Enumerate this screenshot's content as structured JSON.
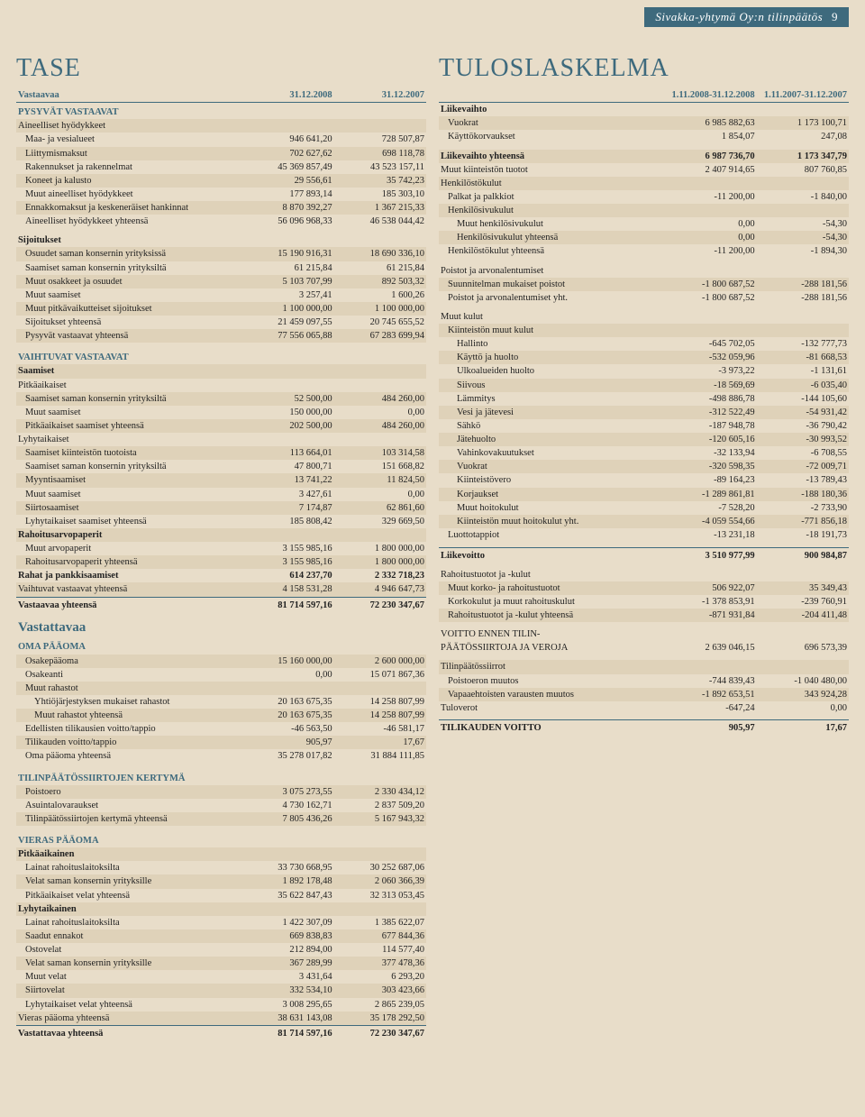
{
  "header": {
    "title": "Sivakka-yhtymä Oy:n tilinpäätös",
    "page_num": "9"
  },
  "left": {
    "title": "TASE",
    "col_headers": [
      "Vastaavaa",
      "31.12.2008",
      "31.12.2007"
    ],
    "sections": [
      {
        "type": "head",
        "label": "PYSYVÄT VASTAAVAT"
      },
      {
        "type": "row",
        "label": "Aineelliset hyödykkeet",
        "v": [
          "",
          ""
        ],
        "shade": true
      },
      {
        "type": "row",
        "label": "Maa- ja vesialueet",
        "v": [
          "946 641,20",
          "728 507,87"
        ],
        "indent": 1
      },
      {
        "type": "row",
        "label": "Liittymismaksut",
        "v": [
          "702 627,62",
          "698 118,78"
        ],
        "indent": 1,
        "shade": true
      },
      {
        "type": "row",
        "label": "Rakennukset ja rakennelmat",
        "v": [
          "45 369 857,49",
          "43 523 157,11"
        ],
        "indent": 1
      },
      {
        "type": "row",
        "label": "Koneet ja kalusto",
        "v": [
          "29 556,61",
          "35 742,23"
        ],
        "indent": 1,
        "shade": true
      },
      {
        "type": "row",
        "label": "Muut aineelliset hyödykkeet",
        "v": [
          "177 893,14",
          "185 303,10"
        ],
        "indent": 1
      },
      {
        "type": "row",
        "label": "Ennakkomaksut ja keskeneräiset hankinnat",
        "v": [
          "8 870 392,27",
          "1 367 215,33"
        ],
        "indent": 1,
        "shade": true
      },
      {
        "type": "row",
        "label": "Aineelliset hyödykkeet yhteensä",
        "v": [
          "56 096 968,33",
          "46 538 044,42"
        ],
        "indent": 1
      },
      {
        "type": "spacer"
      },
      {
        "type": "row",
        "label": "Sijoitukset",
        "v": [
          "",
          ""
        ],
        "bold": true
      },
      {
        "type": "row",
        "label": "Osuudet saman konsernin yrityksissä",
        "v": [
          "15 190 916,31",
          "18 690 336,10"
        ],
        "indent": 1,
        "shade": true
      },
      {
        "type": "row",
        "label": "Saamiset saman konsernin yrityksiltä",
        "v": [
          "61 215,84",
          "61 215,84"
        ],
        "indent": 1
      },
      {
        "type": "row",
        "label": "Muut osakkeet ja osuudet",
        "v": [
          "5 103 707,99",
          "892 503,32"
        ],
        "indent": 1,
        "shade": true
      },
      {
        "type": "row",
        "label": "Muut saamiset",
        "v": [
          "3 257,41",
          "1 600,26"
        ],
        "indent": 1
      },
      {
        "type": "row",
        "label": "Muut pitkävaikutteiset sijoitukset",
        "v": [
          "1 100 000,00",
          "1 100 000,00"
        ],
        "indent": 1,
        "shade": true
      },
      {
        "type": "row",
        "label": "Sijoitukset yhteensä",
        "v": [
          "21 459 097,55",
          "20 745 655,52"
        ],
        "indent": 1
      },
      {
        "type": "row",
        "label": "Pysyvät vastaavat yhteensä",
        "v": [
          "77 556 065,88",
          "67 283 699,94"
        ],
        "indent": 1,
        "shade": true
      },
      {
        "type": "spacer"
      },
      {
        "type": "head",
        "label": "VAIHTUVAT VASTAAVAT"
      },
      {
        "type": "row",
        "label": "Saamiset",
        "v": [
          "",
          ""
        ],
        "bold": true,
        "shade": true
      },
      {
        "type": "row",
        "label": "Pitkäaikaiset",
        "v": [
          "",
          ""
        ]
      },
      {
        "type": "row",
        "label": "Saamiset saman konsernin yrityksiltä",
        "v": [
          "52 500,00",
          "484 260,00"
        ],
        "indent": 1,
        "shade": true
      },
      {
        "type": "row",
        "label": "Muut saamiset",
        "v": [
          "150 000,00",
          "0,00"
        ],
        "indent": 1
      },
      {
        "type": "row",
        "label": "Pitkäaikaiset saamiset yhteensä",
        "v": [
          "202 500,00",
          "484 260,00"
        ],
        "indent": 1,
        "shade": true
      },
      {
        "type": "row",
        "label": "Lyhytaikaiset",
        "v": [
          "",
          ""
        ]
      },
      {
        "type": "row",
        "label": "Saamiset kiinteistön tuotoista",
        "v": [
          "113 664,01",
          "103 314,58"
        ],
        "indent": 1,
        "shade": true
      },
      {
        "type": "row",
        "label": "Saamiset saman konsernin yrityksiltä",
        "v": [
          "47 800,71",
          "151 668,82"
        ],
        "indent": 1
      },
      {
        "type": "row",
        "label": "Myyntisaamiset",
        "v": [
          "13 741,22",
          "11 824,50"
        ],
        "indent": 1,
        "shade": true
      },
      {
        "type": "row",
        "label": "Muut saamiset",
        "v": [
          "3 427,61",
          "0,00"
        ],
        "indent": 1
      },
      {
        "type": "row",
        "label": "Siirtosaamiset",
        "v": [
          "7 174,87",
          "62 861,60"
        ],
        "indent": 1,
        "shade": true
      },
      {
        "type": "row",
        "label": "Lyhytaikaiset saamiset yhteensä",
        "v": [
          "185 808,42",
          "329 669,50"
        ],
        "indent": 1
      },
      {
        "type": "row",
        "label": "Rahoitusarvopaperit",
        "v": [
          "",
          ""
        ],
        "bold": true,
        "shade": true
      },
      {
        "type": "row",
        "label": "Muut arvopaperit",
        "v": [
          "3 155 985,16",
          "1 800 000,00"
        ],
        "indent": 1
      },
      {
        "type": "row",
        "label": "Rahoitusarvopaperit yhteensä",
        "v": [
          "3 155 985,16",
          "1 800 000,00"
        ],
        "indent": 1,
        "shade": true
      },
      {
        "type": "row",
        "label": "Rahat ja pankkisaamiset",
        "v": [
          "614 237,70",
          "2 332 718,23"
        ],
        "bold": true
      },
      {
        "type": "row",
        "label": "Vaihtuvat vastaavat yhteensä",
        "v": [
          "4 158 531,28",
          "4 946 647,73"
        ],
        "shade": true
      },
      {
        "type": "divider",
        "label": "Vastaavaa yhteensä",
        "v": [
          "81 714 597,16",
          "72 230 347,67"
        ]
      },
      {
        "type": "subtitle",
        "label": "Vastattavaa"
      },
      {
        "type": "head",
        "label": "OMA PÄÄOMA"
      },
      {
        "type": "row",
        "label": "Osakepääoma",
        "v": [
          "15 160 000,00",
          "2 600 000,00"
        ],
        "indent": 1,
        "shade": true
      },
      {
        "type": "row",
        "label": "Osakeanti",
        "v": [
          "0,00",
          "15 071 867,36"
        ],
        "indent": 1
      },
      {
        "type": "row",
        "label": "Muut rahastot",
        "v": [
          "",
          ""
        ],
        "indent": 1,
        "shade": true
      },
      {
        "type": "row",
        "label": "Yhtiöjärjestyksen mukaiset rahastot",
        "v": [
          "20 163 675,35",
          "14 258 807,99"
        ],
        "indent": 2
      },
      {
        "type": "row",
        "label": "Muut rahastot yhteensä",
        "v": [
          "20 163 675,35",
          "14 258 807,99"
        ],
        "indent": 2,
        "shade": true
      },
      {
        "type": "row",
        "label": "Edellisten tilikausien voitto/tappio",
        "v": [
          "-46 563,50",
          "-46 581,17"
        ],
        "indent": 1
      },
      {
        "type": "row",
        "label": "Tilikauden voitto/tappio",
        "v": [
          "905,97",
          "17,67"
        ],
        "indent": 1,
        "shade": true
      },
      {
        "type": "row",
        "label": "Oma pääoma yhteensä",
        "v": [
          "35 278 017,82",
          "31 884 111,85"
        ],
        "indent": 1
      },
      {
        "type": "spacer"
      },
      {
        "type": "head",
        "label": "TILINPÄÄTÖSSIIRTOJEN KERTYMÄ"
      },
      {
        "type": "row",
        "label": "Poistoero",
        "v": [
          "3 075 273,55",
          "2 330 434,12"
        ],
        "indent": 1,
        "shade": true
      },
      {
        "type": "row",
        "label": "Asuintalovaraukset",
        "v": [
          "4 730 162,71",
          "2 837 509,20"
        ],
        "indent": 1
      },
      {
        "type": "row",
        "label": "Tilinpäätössiirtojen kertymä yhteensä",
        "v": [
          "7 805 436,26",
          "5 167 943,32"
        ],
        "indent": 1,
        "shade": true
      },
      {
        "type": "spacer"
      },
      {
        "type": "head",
        "label": "VIERAS PÄÄOMA"
      },
      {
        "type": "row",
        "label": "Pitkäaikainen",
        "v": [
          "",
          ""
        ],
        "bold": true,
        "shade": true
      },
      {
        "type": "row",
        "label": "Lainat rahoituslaitoksilta",
        "v": [
          "33 730 668,95",
          "30 252 687,06"
        ],
        "indent": 1
      },
      {
        "type": "row",
        "label": "Velat saman konsernin yrityksille",
        "v": [
          "1 892 178,48",
          "2 060 366,39"
        ],
        "indent": 1,
        "shade": true
      },
      {
        "type": "row",
        "label": "Pitkäaikaiset velat yhteensä",
        "v": [
          "35 622 847,43",
          "32 313 053,45"
        ],
        "indent": 1
      },
      {
        "type": "row",
        "label": "Lyhytaikainen",
        "v": [
          "",
          ""
        ],
        "bold": true,
        "shade": true
      },
      {
        "type": "row",
        "label": "Lainat rahoituslaitoksilta",
        "v": [
          "1 422 307,09",
          "1 385 622,07"
        ],
        "indent": 1
      },
      {
        "type": "row",
        "label": "Saadut ennakot",
        "v": [
          "669 838,83",
          "677 844,36"
        ],
        "indent": 1,
        "shade": true
      },
      {
        "type": "row",
        "label": "Ostovelat",
        "v": [
          "212 894,00",
          "114 577,40"
        ],
        "indent": 1
      },
      {
        "type": "row",
        "label": "Velat saman konsernin yrityksille",
        "v": [
          "367 289,99",
          "377 478,36"
        ],
        "indent": 1,
        "shade": true
      },
      {
        "type": "row",
        "label": "Muut velat",
        "v": [
          "3 431,64",
          "6 293,20"
        ],
        "indent": 1
      },
      {
        "type": "row",
        "label": "Siirtovelat",
        "v": [
          "332 534,10",
          "303 423,66"
        ],
        "indent": 1,
        "shade": true
      },
      {
        "type": "row",
        "label": "Lyhytaikaiset velat yhteensä",
        "v": [
          "3 008 295,65",
          "2 865 239,05"
        ],
        "indent": 1
      },
      {
        "type": "row",
        "label": "Vieras pääoma yhteensä",
        "v": [
          "38 631 143,08",
          "35 178 292,50"
        ],
        "shade": true
      },
      {
        "type": "divider",
        "label": "Vastattavaa yhteensä",
        "v": [
          "81 714 597,16",
          "72 230 347,67"
        ]
      }
    ]
  },
  "right": {
    "title": "TULOSLASKELMA",
    "col_headers": [
      "",
      "1.11.2008-31.12.2008",
      "1.11.2007-31.12.2007"
    ],
    "sections": [
      {
        "type": "row",
        "label": "Liikevaihto",
        "v": [
          "",
          ""
        ],
        "bold": true
      },
      {
        "type": "row",
        "label": "Vuokrat",
        "v": [
          "6 985 882,63",
          "1 173 100,71"
        ],
        "indent": 1,
        "shade": true
      },
      {
        "type": "row",
        "label": "Käyttökorvaukset",
        "v": [
          "1 854,07",
          "247,08"
        ],
        "indent": 1
      },
      {
        "type": "spacer"
      },
      {
        "type": "row",
        "label": "Liikevaihto yhteensä",
        "v": [
          "6 987 736,70",
          "1 173 347,79"
        ],
        "bold": true,
        "shade": true
      },
      {
        "type": "row",
        "label": "Muut kiinteistön tuotot",
        "v": [
          "2 407 914,65",
          "807 760,85"
        ]
      },
      {
        "type": "row",
        "label": "Henkilöstökulut",
        "v": [
          "",
          ""
        ],
        "shade": true
      },
      {
        "type": "row",
        "label": "Palkat ja palkkiot",
        "v": [
          "-11 200,00",
          "-1 840,00"
        ],
        "indent": 1
      },
      {
        "type": "row",
        "label": "Henkilösivukulut",
        "v": [
          "",
          ""
        ],
        "indent": 1,
        "shade": true
      },
      {
        "type": "row",
        "label": "Muut henkilösivukulut",
        "v": [
          "0,00",
          "-54,30"
        ],
        "indent": 2
      },
      {
        "type": "row",
        "label": "Henkilösivukulut yhteensä",
        "v": [
          "0,00",
          "-54,30"
        ],
        "indent": 2,
        "shade": true
      },
      {
        "type": "row",
        "label": "Henkilöstökulut yhteensä",
        "v": [
          "-11 200,00",
          "-1 894,30"
        ],
        "indent": 1
      },
      {
        "type": "spacer"
      },
      {
        "type": "row",
        "label": "Poistot ja arvonalentumiset",
        "v": [
          "",
          ""
        ]
      },
      {
        "type": "row",
        "label": "Suunnitelman mukaiset poistot",
        "v": [
          "-1 800 687,52",
          "-288 181,56"
        ],
        "indent": 1,
        "shade": true
      },
      {
        "type": "row",
        "label": "Poistot ja arvonalentumiset yht.",
        "v": [
          "-1 800 687,52",
          "-288 181,56"
        ],
        "indent": 1
      },
      {
        "type": "spacer"
      },
      {
        "type": "row",
        "label": "Muut kulut",
        "v": [
          "",
          ""
        ]
      },
      {
        "type": "row",
        "label": "Kiinteistön muut kulut",
        "v": [
          "",
          ""
        ],
        "indent": 1,
        "shade": true
      },
      {
        "type": "row",
        "label": "Hallinto",
        "v": [
          "-645 702,05",
          "-132 777,73"
        ],
        "indent": 2
      },
      {
        "type": "row",
        "label": "Käyttö ja huolto",
        "v": [
          "-532 059,96",
          "-81 668,53"
        ],
        "indent": 2,
        "shade": true
      },
      {
        "type": "row",
        "label": "Ulkoalueiden huolto",
        "v": [
          "-3 973,22",
          "-1 131,61"
        ],
        "indent": 2
      },
      {
        "type": "row",
        "label": "Siivous",
        "v": [
          "-18 569,69",
          "-6 035,40"
        ],
        "indent": 2,
        "shade": true
      },
      {
        "type": "row",
        "label": "Lämmitys",
        "v": [
          "-498 886,78",
          "-144 105,60"
        ],
        "indent": 2
      },
      {
        "type": "row",
        "label": "Vesi ja jätevesi",
        "v": [
          "-312 522,49",
          "-54 931,42"
        ],
        "indent": 2,
        "shade": true
      },
      {
        "type": "row",
        "label": "Sähkö",
        "v": [
          "-187 948,78",
          "-36 790,42"
        ],
        "indent": 2
      },
      {
        "type": "row",
        "label": "Jätehuolto",
        "v": [
          "-120 605,16",
          "-30 993,52"
        ],
        "indent": 2,
        "shade": true
      },
      {
        "type": "row",
        "label": "Vahinkovakuutukset",
        "v": [
          "-32 133,94",
          "-6 708,55"
        ],
        "indent": 2
      },
      {
        "type": "row",
        "label": "Vuokrat",
        "v": [
          "-320 598,35",
          "-72 009,71"
        ],
        "indent": 2,
        "shade": true
      },
      {
        "type": "row",
        "label": "Kiinteistövero",
        "v": [
          "-89 164,23",
          "-13 789,43"
        ],
        "indent": 2
      },
      {
        "type": "row",
        "label": "Korjaukset",
        "v": [
          "-1 289 861,81",
          "-188 180,36"
        ],
        "indent": 2,
        "shade": true
      },
      {
        "type": "row",
        "label": "Muut hoitokulut",
        "v": [
          "-7 528,20",
          "-2 733,90"
        ],
        "indent": 2
      },
      {
        "type": "row",
        "label": "Kiinteistön muut hoitokulut yht.",
        "v": [
          "-4 059 554,66",
          "-771 856,18"
        ],
        "indent": 2,
        "shade": true
      },
      {
        "type": "row",
        "label": "Luottotappiot",
        "v": [
          "-13 231,18",
          "-18 191,73"
        ],
        "indent": 1
      },
      {
        "type": "spacer"
      },
      {
        "type": "divider",
        "label": "Liikevoitto",
        "v": [
          "3 510 977,99",
          "900 984,87"
        ]
      },
      {
        "type": "spacer"
      },
      {
        "type": "row",
        "label": "Rahoitustuotot ja -kulut",
        "v": [
          "",
          ""
        ]
      },
      {
        "type": "row",
        "label": "Muut korko- ja rahoitustuotot",
        "v": [
          "506 922,07",
          "35 349,43"
        ],
        "indent": 1,
        "shade": true
      },
      {
        "type": "row",
        "label": "Korkokulut ja muut rahoituskulut",
        "v": [
          "-1 378 853,91",
          "-239 760,91"
        ],
        "indent": 1
      },
      {
        "type": "row",
        "label": "Rahoitustuotot ja -kulut yhteensä",
        "v": [
          "-871 931,84",
          "-204 411,48"
        ],
        "indent": 1,
        "shade": true
      },
      {
        "type": "spacer"
      },
      {
        "type": "row",
        "label": "VOITTO ENNEN TILIN-",
        "v": [
          "",
          ""
        ]
      },
      {
        "type": "row",
        "label": "PÄÄTÖSSIIRTOJA JA VEROJA",
        "v": [
          "2 639 046,15",
          "696 573,39"
        ]
      },
      {
        "type": "spacer"
      },
      {
        "type": "row",
        "label": "Tilinpäätössiirrot",
        "v": [
          "",
          ""
        ],
        "shade": true
      },
      {
        "type": "row",
        "label": "Poistoeron muutos",
        "v": [
          "-744 839,43",
          "-1 040 480,00"
        ],
        "indent": 1
      },
      {
        "type": "row",
        "label": "Vapaaehtoisten varausten muutos",
        "v": [
          "-1 892 653,51",
          "343 924,28"
        ],
        "indent": 1,
        "shade": true
      },
      {
        "type": "row",
        "label": "Tuloverot",
        "v": [
          "-647,24",
          "0,00"
        ]
      },
      {
        "type": "spacer"
      },
      {
        "type": "divider",
        "label": "TILIKAUDEN VOITTO",
        "v": [
          "905,97",
          "17,67"
        ]
      }
    ]
  }
}
